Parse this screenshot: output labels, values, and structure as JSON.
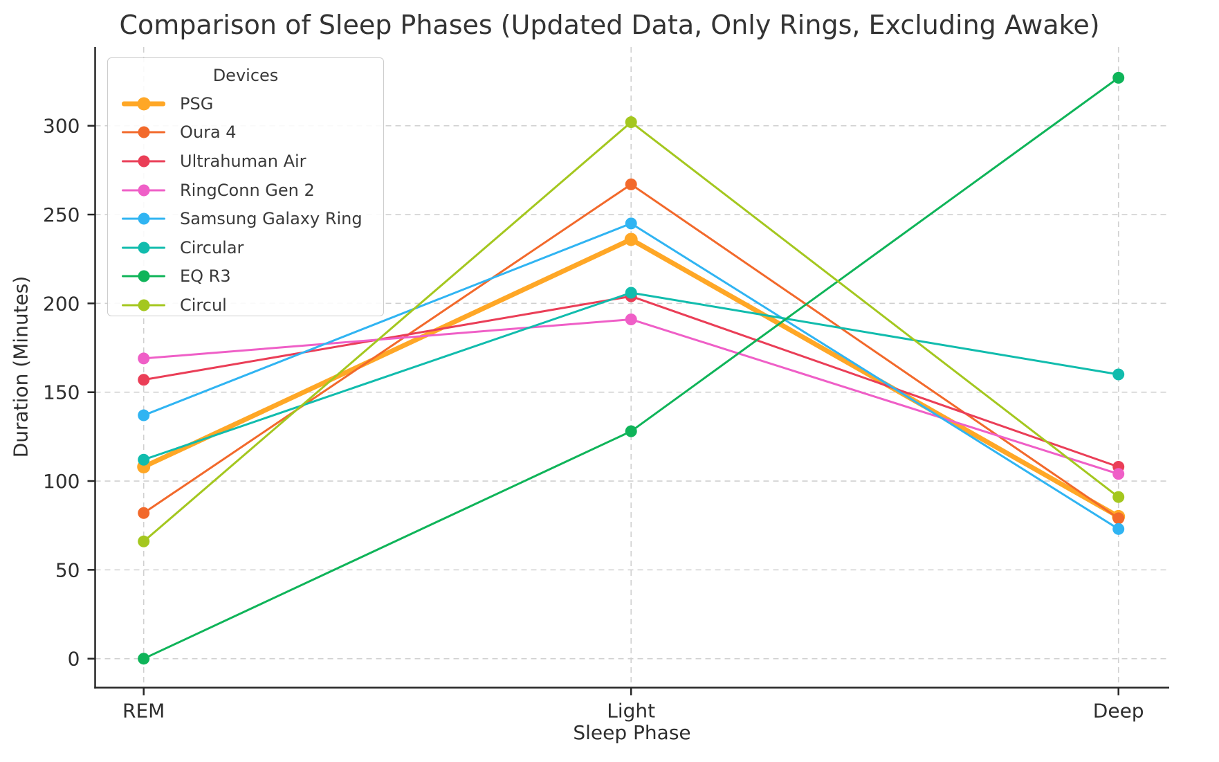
{
  "chart_data": {
    "type": "line",
    "title": "Comparison of Sleep Phases (Updated Data, Only Rings, Excluding Awake)",
    "xlabel": "Sleep Phase",
    "ylabel": "Duration (Minutes)",
    "categories": [
      "REM",
      "Light",
      "Deep"
    ],
    "y_ticks": [
      0,
      50,
      100,
      150,
      200,
      250,
      300
    ],
    "ylim": [
      -16,
      344
    ],
    "grid": "dashed-both-axes",
    "legend": {
      "title": "Devices",
      "position": "upper-left"
    },
    "series": [
      {
        "name": "PSG",
        "color": "#FFA726",
        "line_width": 7,
        "values": [
          108,
          236,
          80
        ]
      },
      {
        "name": "Oura 4",
        "color": "#F2692B",
        "line_width": 3,
        "values": [
          82,
          267,
          79
        ]
      },
      {
        "name": "Ultrahuman Air",
        "color": "#EA3E57",
        "line_width": 3,
        "values": [
          157,
          204,
          108
        ]
      },
      {
        "name": "RingConn Gen 2",
        "color": "#EF5FC7",
        "line_width": 3,
        "values": [
          169,
          191,
          104
        ]
      },
      {
        "name": "Samsung Galaxy Ring",
        "color": "#30B4F2",
        "line_width": 3,
        "values": [
          137,
          245,
          73
        ]
      },
      {
        "name": "Circular",
        "color": "#11BCAD",
        "line_width": 3,
        "values": [
          112,
          206,
          160
        ]
      },
      {
        "name": "EQ R3",
        "color": "#0FB459",
        "line_width": 3,
        "values": [
          0,
          128,
          327
        ]
      },
      {
        "name": "Circul",
        "color": "#A4C71F",
        "line_width": 3,
        "values": [
          66,
          302,
          91
        ]
      }
    ]
  }
}
